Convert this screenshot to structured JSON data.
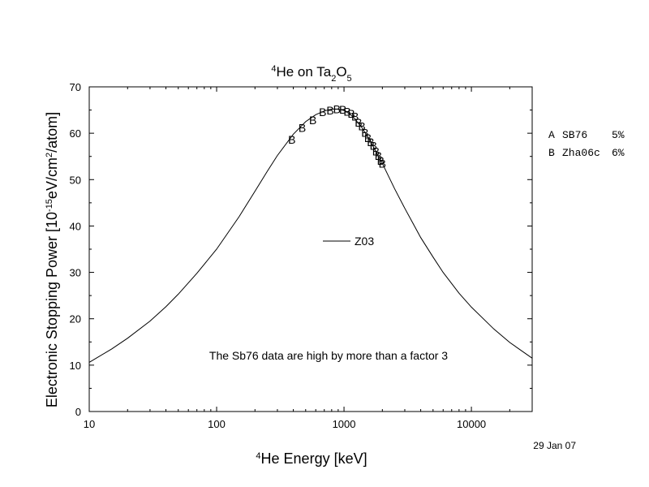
{
  "chart_data": {
    "type": "line",
    "title": {
      "prefix_sup": "4",
      "text1": "He on Ta",
      "sub1": "2",
      "text2": "O",
      "sub2": "5"
    },
    "xlabel": {
      "prefix_sup": "4",
      "text": "He Energy [keV]"
    },
    "ylabel": {
      "text1": "Electronic Stopping Power [10",
      "sup1": "-15",
      "text2": "eV/cm",
      "sup2": "2",
      "text3": "/atom]"
    },
    "x_scale": "log",
    "xlim": [
      10,
      30000
    ],
    "ylim": [
      0,
      70
    ],
    "x_ticks": [
      10,
      100,
      1000,
      10000
    ],
    "x_tick_labels": [
      "10",
      "100",
      "1000",
      "10000"
    ],
    "y_ticks": [
      0,
      10,
      20,
      30,
      40,
      50,
      60,
      70
    ],
    "y_tick_labels": [
      "0",
      "10",
      "20",
      "30",
      "40",
      "50",
      "60",
      "70"
    ],
    "grid": false,
    "series": [
      {
        "name": "Z03",
        "kind": "line",
        "x": [
          10,
          15,
          20,
          30,
          40,
          50,
          70,
          100,
          150,
          200,
          250,
          300,
          400,
          500,
          600,
          700,
          800,
          900,
          1000,
          1100,
          1200,
          1400,
          1600,
          1800,
          2000,
          2500,
          3000,
          4000,
          5000,
          6000,
          8000,
          10000,
          15000,
          20000,
          30000
        ],
        "y": [
          10.6,
          13.5,
          15.8,
          19.5,
          22.6,
          25.3,
          29.8,
          35.0,
          42.0,
          47.5,
          51.8,
          55.2,
          59.8,
          62.5,
          64.0,
          64.8,
          65.2,
          65.2,
          64.9,
          64.2,
          63.3,
          61.0,
          58.4,
          55.8,
          53.5,
          48.0,
          43.8,
          37.5,
          33.3,
          30.0,
          25.5,
          22.5,
          17.8,
          14.9,
          11.5
        ]
      },
      {
        "name": "Zha06c",
        "marker": "B",
        "kind": "markers",
        "x": [
          390,
          470,
          570,
          680,
          780,
          880,
          980,
          1060,
          1140,
          1220,
          1300,
          1380,
          1460,
          1540,
          1620,
          1700,
          1780,
          1860,
          1940,
          2000
        ],
        "y": [
          58.6,
          61.2,
          62.8,
          64.6,
          64.9,
          65.2,
          65.1,
          64.7,
          64.2,
          63.6,
          62.3,
          61.5,
          60.1,
          59.0,
          58.1,
          57.3,
          56.1,
          55.1,
          54.1,
          53.5
        ]
      }
    ],
    "inline_legend": {
      "label": "Z03"
    },
    "side_legend": [
      {
        "marker": "A",
        "name": "SB76",
        "uncertainty": "5%"
      },
      {
        "marker": "B",
        "name": "Zha06c",
        "uncertainty": "6%"
      }
    ],
    "annotation": "The Sb76 data are high by more than a factor 3",
    "date_stamp": "29 Jan 07"
  }
}
